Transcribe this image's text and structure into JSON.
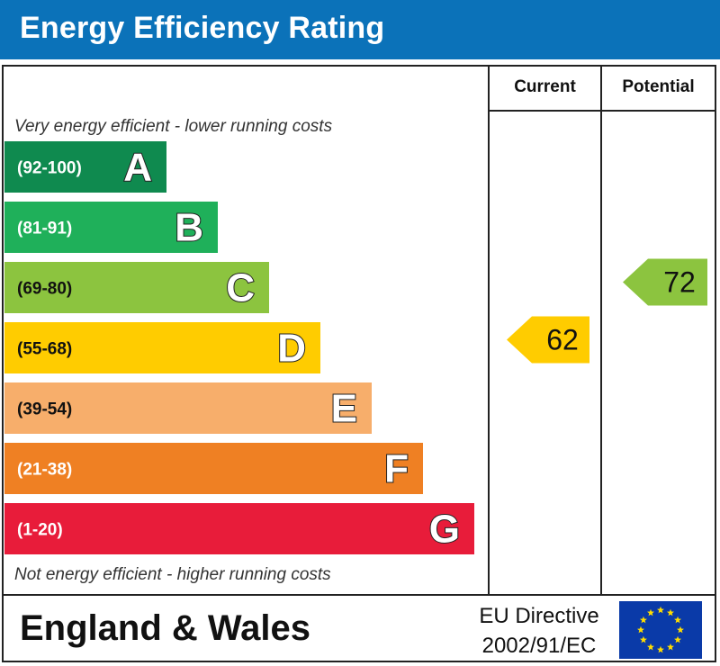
{
  "title": "Energy Efficiency Rating",
  "columns": {
    "current": "Current",
    "potential": "Potential"
  },
  "notes": {
    "top": "Very energy efficient - lower running costs",
    "bottom": "Not energy efficient - higher running costs"
  },
  "footer": {
    "region": "England & Wales",
    "directive_line1": "EU Directive",
    "directive_line2": "2002/91/EC"
  },
  "chart_data": {
    "type": "bar",
    "categories": [
      "A",
      "B",
      "C",
      "D",
      "E",
      "F",
      "G"
    ],
    "ranges": [
      "(92-100)",
      "(81-91)",
      "(69-80)",
      "(55-68)",
      "(39-54)",
      "(21-38)",
      "(1-20)"
    ],
    "colors": [
      "#0f8a4f",
      "#1fb05a",
      "#8cc43f",
      "#ffcc00",
      "#f7ae6b",
      "#ef8023",
      "#e81c3a"
    ],
    "current": {
      "value": 62,
      "band": "D",
      "color": "#ffcc00"
    },
    "potential": {
      "value": 72,
      "band": "C",
      "color": "#8cc43f"
    }
  },
  "colors": {
    "title_bar": "#0b72b9",
    "eu_flag": "#0a3aa8",
    "eu_stars": "#ffdd00"
  }
}
